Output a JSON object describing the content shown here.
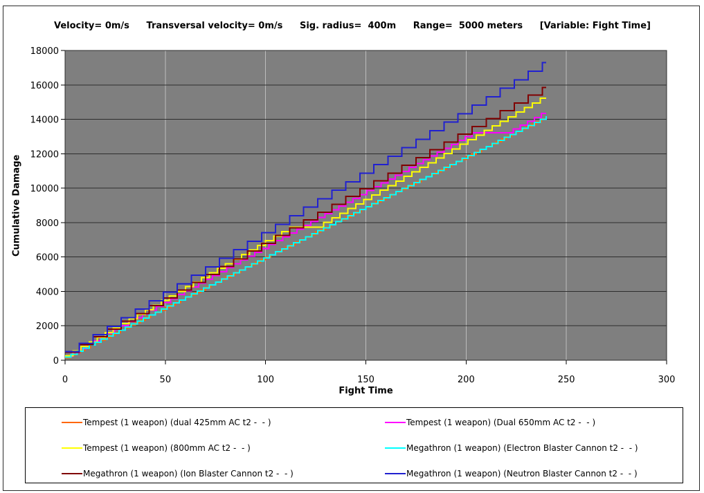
{
  "header": {
    "segments": [
      "Velocity= 0m/s",
      "Transversal velocity= 0m/s",
      "Sig. radius=  400m",
      "Range=  5000 meters",
      "[Variable: Fight Time]"
    ]
  },
  "chart_data": {
    "type": "line",
    "title": "Velocity= 0m/s  Transversal velocity= 0m/s  Sig. radius= 400m  Range= 5000 meters  [Variable: Fight Time]",
    "xlabel": "Fight Time",
    "ylabel": "Cumulative Damage",
    "xlim": [
      0,
      300
    ],
    "ylim": [
      0,
      18000
    ],
    "x_ticks": [
      0,
      50,
      100,
      150,
      200,
      250,
      300
    ],
    "y_ticks": [
      0,
      2000,
      4000,
      6000,
      8000,
      10000,
      12000,
      14000,
      16000,
      18000
    ],
    "grid": {
      "horizontal": true,
      "vertical": true
    },
    "legend_position": "bottom",
    "end_time": 240,
    "colors": {
      "plot_background": "#7F7F7F",
      "horizontal_grid": "#2D2D2D",
      "vertical_grid": "#BDBDBD",
      "plot_border": "#2D2D2D",
      "axis_tick": "#000000"
    },
    "series": [
      {
        "name": "Tempest (1 weapon) (dual 425mm AC t2 -  - )",
        "color": "#FF6600",
        "shape": "step",
        "volley": 146,
        "period": 2.5,
        "pauses": [],
        "end_value": 14100
      },
      {
        "name": "Tempest (1 weapon) (Dual 650mm AC t2 -  - )",
        "color": "#FF00FF",
        "shape": "step",
        "volley": 224,
        "period": 3.5,
        "pauses": [
          [
            205,
            222
          ]
        ],
        "end_value": 14350
      },
      {
        "name": "Tempest (1 weapon) (800mm AC t2 -  - )",
        "color": "#FFFF00",
        "shape": "step",
        "volley": 267,
        "period": 4,
        "pauses": [
          [
            113,
            126
          ]
        ],
        "end_value": 15200
      },
      {
        "name": "Megathron (1 weapon) (Electron Blaster Cannon t2 -  - )",
        "color": "#00FFFF",
        "shape": "step",
        "volley": 175,
        "period": 3,
        "pauses": [],
        "end_value": 14150
      },
      {
        "name": "Megathron (1 weapon) (Ion Blaster Cannon t2 -  - )",
        "color": "#800000",
        "shape": "step",
        "volley": 453,
        "period": 7,
        "pauses": [],
        "end_value": 15860
      },
      {
        "name": "Megathron (1 weapon) (Neutron Blaster Cannon t2 -  - )",
        "color": "#2020D0",
        "shape": "step",
        "volley": 494,
        "period": 7,
        "pauses": [],
        "end_value": 17280
      }
    ]
  },
  "legend": {
    "rows": [
      [
        0,
        1
      ],
      [
        2,
        3
      ],
      [
        4,
        5
      ]
    ]
  }
}
